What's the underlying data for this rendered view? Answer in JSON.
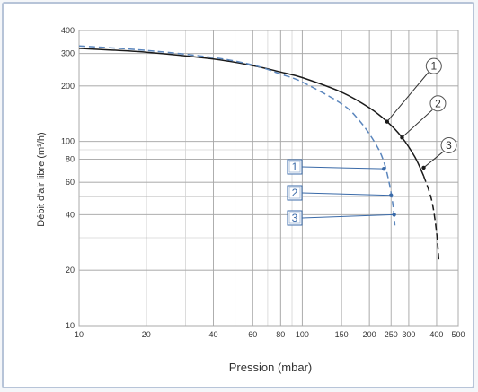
{
  "chart_data": {
    "type": "line",
    "xlabel": "Pression (mbar)",
    "ylabel": "Débit d'air libre (m³/h)",
    "xscale": "log",
    "yscale": "log",
    "xlim": [
      10,
      500
    ],
    "ylim": [
      10,
      400
    ],
    "x_ticks": [
      10,
      20,
      40,
      60,
      80,
      100,
      150,
      200,
      250,
      300,
      400,
      500
    ],
    "y_ticks": [
      10,
      20,
      40,
      60,
      80,
      100,
      200,
      300,
      400
    ],
    "grid": true,
    "series": [
      {
        "style": "solid",
        "color": "#1a1a1a",
        "points": [
          [
            10,
            320
          ],
          [
            20,
            305
          ],
          [
            40,
            280
          ],
          [
            60,
            258
          ],
          [
            80,
            238
          ],
          [
            100,
            222
          ],
          [
            150,
            185
          ],
          [
            200,
            152
          ],
          [
            240,
            128
          ],
          [
            280,
            105
          ],
          [
            320,
            82
          ],
          [
            350,
            65
          ]
        ]
      },
      {
        "style": "dashed",
        "color": "#1a1a1a",
        "points": [
          [
            350,
            65
          ],
          [
            380,
            48
          ],
          [
            400,
            32
          ],
          [
            410,
            22
          ]
        ]
      },
      {
        "style": "dashed",
        "color": "#5b86bd",
        "points": [
          [
            10,
            330
          ],
          [
            20,
            312
          ],
          [
            40,
            285
          ],
          [
            60,
            260
          ],
          [
            80,
            232
          ],
          [
            100,
            210
          ],
          [
            150,
            160
          ],
          [
            180,
            130
          ],
          [
            210,
            100
          ],
          [
            230,
            80
          ],
          [
            245,
            60
          ],
          [
            255,
            45
          ],
          [
            260,
            35
          ]
        ]
      }
    ],
    "annotations": [
      {
        "label": "1",
        "style": "circle",
        "x": 240,
        "y": 128
      },
      {
        "label": "2",
        "style": "circle",
        "x": 280,
        "y": 105
      },
      {
        "label": "3",
        "style": "circle",
        "x": 350,
        "y": 72
      },
      {
        "label": "1",
        "style": "box",
        "x": 232,
        "y": 71
      },
      {
        "label": "2",
        "style": "box",
        "x": 250,
        "y": 51
      },
      {
        "label": "3",
        "style": "box",
        "x": 258,
        "y": 40
      }
    ]
  }
}
